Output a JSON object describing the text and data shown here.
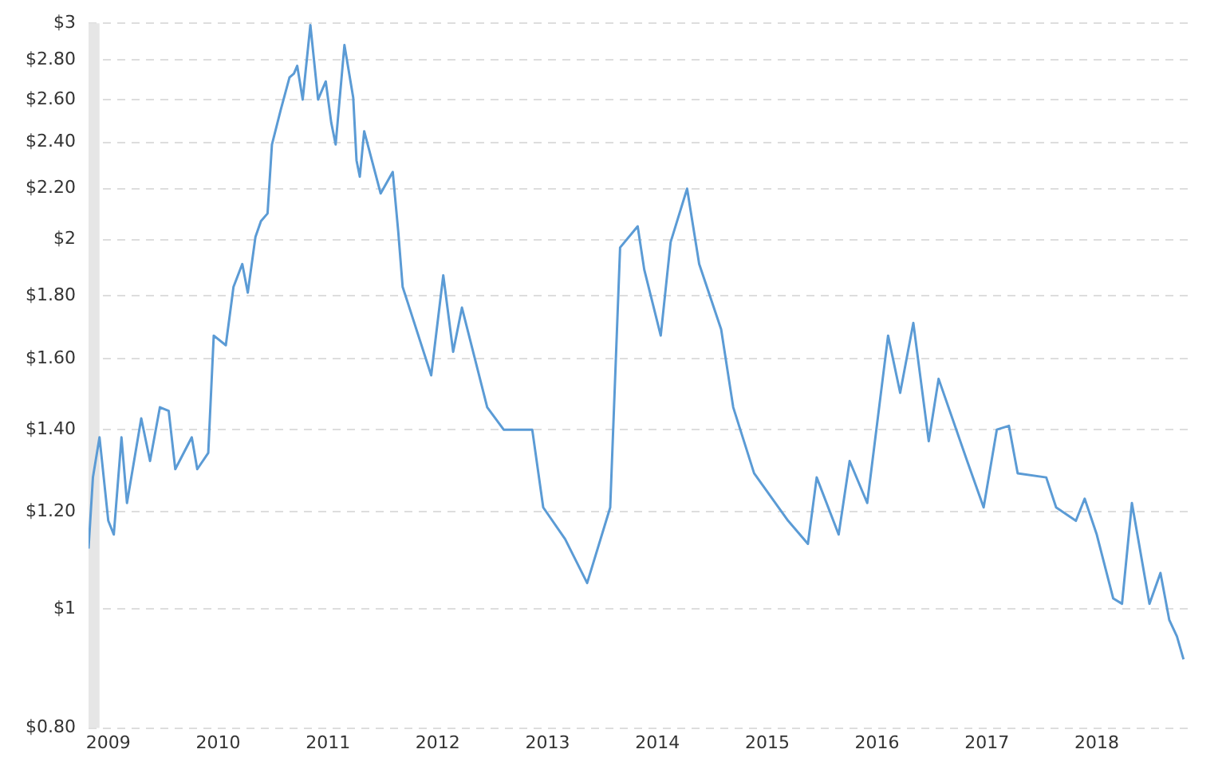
{
  "chart_data": {
    "type": "line",
    "log": "y",
    "grid": "y",
    "legend": false,
    "marker": "none",
    "line_style": "solid",
    "x": [
      2008.82,
      2008.86,
      2008.92,
      2009.0,
      2009.05,
      2009.12,
      2009.17,
      2009.3,
      2009.38,
      2009.47,
      2009.55,
      2009.61,
      2009.76,
      2009.81,
      2009.91,
      2009.96,
      2010.07,
      2010.14,
      2010.22,
      2010.27,
      2010.34,
      2010.39,
      2010.45,
      2010.49,
      2010.57,
      2010.65,
      2010.69,
      2010.72,
      2010.77,
      2010.84,
      2010.91,
      2010.98,
      2011.03,
      2011.07,
      2011.15,
      2011.23,
      2011.26,
      2011.29,
      2011.33,
      2011.48,
      2011.59,
      2011.64,
      2011.68,
      2011.94,
      2012.05,
      2012.14,
      2012.22,
      2012.45,
      2012.6,
      2012.86,
      2012.96,
      2013.16,
      2013.36,
      2013.57,
      2013.66,
      2013.82,
      2013.88,
      2014.03,
      2014.12,
      2014.27,
      2014.38,
      2014.58,
      2014.69,
      2014.88,
      2015.19,
      2015.37,
      2015.45,
      2015.65,
      2015.75,
      2015.91,
      2016.1,
      2016.21,
      2016.33,
      2016.47,
      2016.56,
      2016.82,
      2016.97,
      2017.09,
      2017.2,
      2017.28,
      2017.54,
      2017.63,
      2017.81,
      2017.89,
      2018.0,
      2018.15,
      2018.23,
      2018.32,
      2018.48,
      2018.58,
      2018.66,
      2018.73,
      2018.79
    ],
    "series": [
      {
        "color": "#5b9bd5",
        "values": [
          1.12,
          1.28,
          1.38,
          1.18,
          1.15,
          1.38,
          1.22,
          1.43,
          1.32,
          1.46,
          1.45,
          1.3,
          1.38,
          1.3,
          1.34,
          1.67,
          1.64,
          1.83,
          1.91,
          1.81,
          2.01,
          2.07,
          2.1,
          2.39,
          2.55,
          2.71,
          2.73,
          2.77,
          2.6,
          2.99,
          2.6,
          2.69,
          2.49,
          2.39,
          2.88,
          2.61,
          2.32,
          2.25,
          2.45,
          2.18,
          2.27,
          2.03,
          1.83,
          1.55,
          1.87,
          1.62,
          1.76,
          1.46,
          1.4,
          1.4,
          1.21,
          1.14,
          1.05,
          1.21,
          1.97,
          2.05,
          1.89,
          1.67,
          1.99,
          2.2,
          1.91,
          1.69,
          1.46,
          1.29,
          1.18,
          1.13,
          1.28,
          1.15,
          1.32,
          1.22,
          1.67,
          1.5,
          1.71,
          1.37,
          1.54,
          1.32,
          1.21,
          1.4,
          1.41,
          1.29,
          1.28,
          1.21,
          1.18,
          1.23,
          1.15,
          1.02,
          1.01,
          1.22,
          1.01,
          1.07,
          0.98,
          0.95,
          0.91
        ]
      }
    ],
    "xlim": [
      2008.82,
      2018.85
    ],
    "xticks": [
      2009,
      2010,
      2011,
      2012,
      2013,
      2014,
      2015,
      2016,
      2017,
      2018
    ],
    "ylim": [
      0.8,
      3
    ],
    "yticks": [
      {
        "value": 0.8,
        "label": "$0.80"
      },
      {
        "value": 1,
        "label": "$1"
      },
      {
        "value": 1.2,
        "label": "$1.20"
      },
      {
        "value": 1.4,
        "label": "$1.40"
      },
      {
        "value": 1.6,
        "label": "$1.60"
      },
      {
        "value": 1.8,
        "label": "$1.80"
      },
      {
        "value": 2,
        "label": "$2"
      },
      {
        "value": 2.2,
        "label": "$2.20"
      },
      {
        "value": 2.4,
        "label": "$2.40"
      },
      {
        "value": 2.6,
        "label": "$2.60"
      },
      {
        "value": 2.8,
        "label": "$2.80"
      },
      {
        "value": 3,
        "label": "$3"
      }
    ],
    "bands": [
      {
        "axis": "x",
        "from": 2008.82,
        "to": 2008.92,
        "color": "#e6e6e6"
      }
    ]
  }
}
